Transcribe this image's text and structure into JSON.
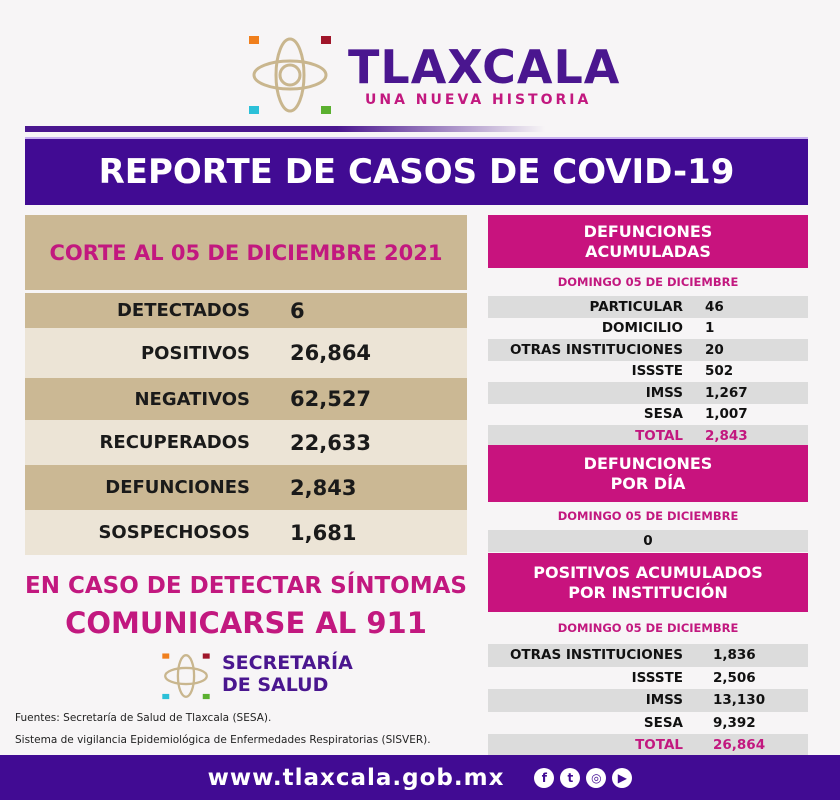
{
  "brand": {
    "name": "TLAXCALA",
    "tagline": "UNA NUEVA HISTORIA"
  },
  "header": {
    "title": "REPORTE DE CASOS DE COVID-19"
  },
  "summary": {
    "title": "CORTE AL 05 DE DICIEMBRE 2021",
    "rows": [
      {
        "label": "DETECTADOS",
        "value": "6"
      },
      {
        "label": "POSITIVOS",
        "value": "26,864"
      },
      {
        "label": "NEGATIVOS",
        "value": "62,527"
      },
      {
        "label": "RECUPERADOS",
        "value": "22,633"
      },
      {
        "label": "DEFUNCIONES",
        "value": "2,843"
      },
      {
        "label": "SOSPECHOSOS",
        "value": "1,681"
      }
    ]
  },
  "deaths_acc": {
    "title1": "DEFUNCIONES",
    "title2": "ACUMULADAS",
    "date": "DOMINGO 05 DE DICIEMBRE",
    "rows": [
      {
        "label": "PARTICULAR",
        "value": "46"
      },
      {
        "label": "DOMICILIO",
        "value": "1"
      },
      {
        "label": "OTRAS INSTITUCIONES",
        "value": "20"
      },
      {
        "label": "ISSSTE",
        "value": "502"
      },
      {
        "label": "IMSS",
        "value": "1,267"
      },
      {
        "label": "SESA",
        "value": "1,007"
      },
      {
        "label": "TOTAL",
        "value": "2,843"
      }
    ]
  },
  "deaths_day": {
    "title1": "DEFUNCIONES",
    "title2": "POR DÍA",
    "date": "DOMINGO 05 DE DICIEMBRE",
    "value": "0"
  },
  "positives": {
    "title1": "POSITIVOS ACUMULADOS",
    "title2": "POR INSTITUCIÓN",
    "date": "DOMINGO 05 DE DICIEMBRE",
    "rows": [
      {
        "label": "OTRAS INSTITUCIONES",
        "value": "1,836"
      },
      {
        "label": "ISSSTE",
        "value": "2,506"
      },
      {
        "label": "IMSS",
        "value": "13,130"
      },
      {
        "label": "SESA",
        "value": "9,392"
      },
      {
        "label": "TOTAL",
        "value": "26,864"
      }
    ]
  },
  "warning": {
    "line1": "EN CASO DE DETECTAR SÍNTOMAS",
    "line2": "COMUNICARSE AL 911"
  },
  "secretaria": {
    "line1": "SECRETARÍA",
    "line2": "DE SALUD"
  },
  "sources": {
    "line1": "Fuentes:  Secretaría de Salud de Tlaxcala (SESA).",
    "line2": "Sistema de vigilancia Epidemiológica de Enfermedades Respiratorias (SISVER)."
  },
  "footer": {
    "url": "www.tlaxcala.gob.mx",
    "social": [
      "facebook-icon",
      "twitter-icon",
      "instagram-icon",
      "youtube-icon"
    ]
  },
  "colors": {
    "purple": "#410b93",
    "magenta": "#c8137e",
    "tan": "#cbb894"
  }
}
